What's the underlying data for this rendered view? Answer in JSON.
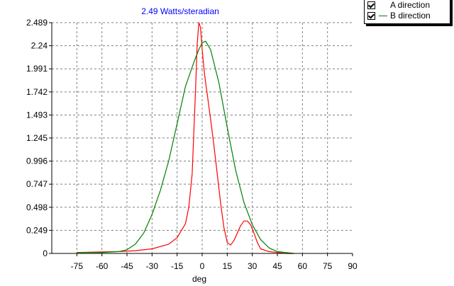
{
  "chart_data": {
    "type": "line",
    "title": "2.49 Watts/steradian",
    "xlabel": "deg",
    "ylabel": "",
    "xlim": [
      -90,
      90
    ],
    "ylim": [
      0,
      2.489
    ],
    "x_ticks": [
      "-75",
      "-60",
      "-45",
      "-30",
      "-15",
      "0",
      "15",
      "30",
      "45",
      "60",
      "75",
      "90"
    ],
    "y_ticks": [
      "0",
      "0.249",
      "0.498",
      "0.747",
      "0.996",
      "1.245",
      "1.493",
      "1.742",
      "1.991",
      "2.24",
      "2.489"
    ],
    "grid": true,
    "legend_position": "top-right",
    "series": [
      {
        "name": "A direction",
        "color": "#ff0000",
        "checked": true,
        "x": [
          -75,
          -50,
          -40,
          -30,
          -20,
          -15,
          -10,
          -8,
          -6,
          -5,
          -4,
          -3,
          -2,
          -1,
          0,
          1,
          2,
          3,
          5,
          7,
          9,
          11,
          13,
          15,
          17,
          19,
          21,
          23,
          25,
          27,
          29,
          31,
          33,
          35,
          40,
          45,
          50,
          55
        ],
        "y": [
          0.01,
          0.02,
          0.03,
          0.05,
          0.1,
          0.17,
          0.32,
          0.5,
          0.86,
          1.3,
          1.75,
          2.25,
          2.489,
          2.44,
          2.2,
          2.0,
          1.85,
          1.72,
          1.45,
          1.17,
          0.86,
          0.55,
          0.28,
          0.12,
          0.09,
          0.14,
          0.22,
          0.3,
          0.35,
          0.35,
          0.31,
          0.22,
          0.12,
          0.05,
          0.02,
          0.01,
          0.0,
          0.0
        ]
      },
      {
        "name": "B direction",
        "color": "#008000",
        "checked": true,
        "x": [
          -75,
          -60,
          -50,
          -45,
          -40,
          -35,
          -30,
          -25,
          -20,
          -15,
          -10,
          -5,
          -2,
          0,
          2,
          5,
          10,
          15,
          20,
          25,
          30,
          35,
          40,
          45,
          50,
          55
        ],
        "y": [
          0.01,
          0.01,
          0.02,
          0.04,
          0.1,
          0.22,
          0.42,
          0.68,
          1.0,
          1.4,
          1.8,
          2.06,
          2.2,
          2.27,
          2.29,
          2.2,
          1.84,
          1.36,
          0.9,
          0.55,
          0.31,
          0.15,
          0.06,
          0.02,
          0.01,
          0.0
        ]
      }
    ]
  },
  "legend": {
    "items": [
      {
        "label": "A direction"
      },
      {
        "label": "B direction"
      }
    ]
  }
}
